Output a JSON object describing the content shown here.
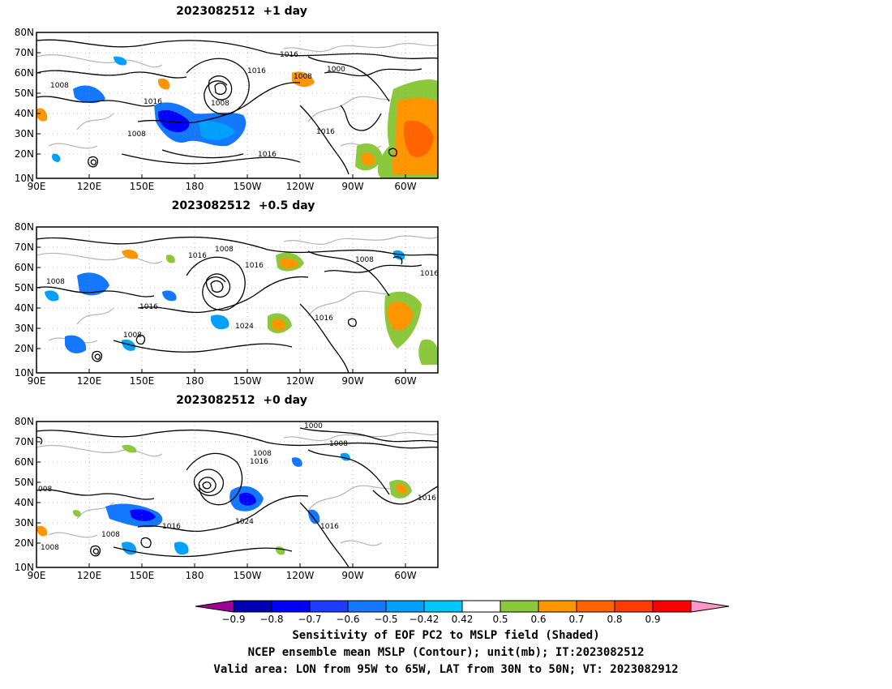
{
  "panels": [
    {
      "title": "2023082512  +1 day"
    },
    {
      "title": "2023082512  +0.5 day"
    },
    {
      "title": "2023082512  +0 day"
    }
  ],
  "lat_labels": [
    "80N",
    "70N",
    "60N",
    "50N",
    "40N",
    "30N",
    "20N",
    "10N"
  ],
  "lon_labels": [
    "90E",
    "120E",
    "150E",
    "180",
    "150W",
    "120W",
    "90W",
    "60W"
  ],
  "contour_labels": [
    [
      "1016",
      "1016",
      "1008",
      "1000",
      "1008",
      "1016",
      "1008",
      "1016",
      "1008",
      "1016"
    ],
    [
      "1008",
      "1016",
      "1016",
      "1008",
      "1008",
      "1016",
      "1016",
      "1008",
      "1024",
      "1016"
    ],
    [
      "1000",
      "1008",
      "1008",
      "1016",
      "008",
      "1016",
      "1024",
      "1016",
      "1008",
      "1016",
      "1008"
    ]
  ],
  "colorbar": {
    "ticks": [
      "−0.9",
      "−0.8",
      "−0.7",
      "−0.6",
      "−0.5",
      "−0.42",
      "0.42",
      "0.5",
      "0.6",
      "0.7",
      "0.8",
      "0.9"
    ],
    "colors": [
      "#a0009a",
      "#0000b4",
      "#0000ff",
      "#1e3cff",
      "#1478ff",
      "#00a0ff",
      "#00c8ff",
      "#ffffff",
      "#8cc83c",
      "#ff9600",
      "#ff6400",
      "#ff3c00",
      "#ff0000",
      "#ff96c8"
    ]
  },
  "caption": {
    "line1": "Sensitivity of EOF PC2 to MSLP field (Shaded)",
    "line2": "NCEP ensemble mean MSLP (Contour); unit(mb); IT:2023082512",
    "line3": "Valid area: LON from 95W to 65W, LAT from 30N to 50N; VT: 2023082912"
  }
}
